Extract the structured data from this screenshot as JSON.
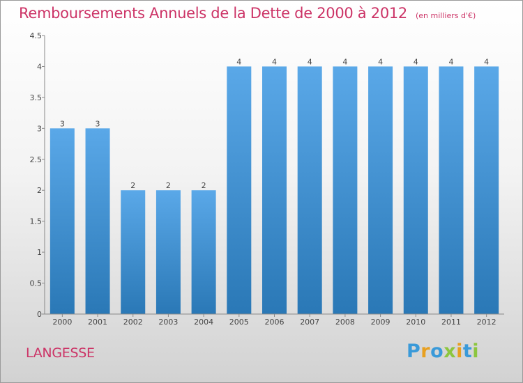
{
  "chart_data": {
    "type": "bar",
    "title": "Remboursements Annuels de la Dette de 2000 à 2012",
    "unit": "(en milliers d'€)",
    "categories": [
      "2000",
      "2001",
      "2002",
      "2003",
      "2004",
      "2005",
      "2006",
      "2007",
      "2008",
      "2009",
      "2010",
      "2011",
      "2012"
    ],
    "values": [
      3,
      3,
      2,
      2,
      2,
      4,
      4,
      4,
      4,
      4,
      4,
      4,
      4
    ],
    "data_labels": [
      "3",
      "3",
      "2",
      "2",
      "2",
      "4",
      "4",
      "4",
      "4",
      "4",
      "4",
      "4",
      "4"
    ],
    "ylim": [
      0,
      4.5
    ],
    "yticks": [
      "0",
      "0.5",
      "1",
      "1.5",
      "2",
      "2.5",
      "3",
      "3.5",
      "4",
      "4.5"
    ],
    "grid": false,
    "bar_color_top": "#5aa8e8",
    "bar_color_bottom": "#2a78b6"
  },
  "commune": "LANGESSE",
  "logo": {
    "name": "Proxiti",
    "letters": [
      {
        "ch": "P",
        "color": "#3a9ad9"
      },
      {
        "ch": "r",
        "color": "#e8a020"
      },
      {
        "ch": "o",
        "color": "#3a9ad9"
      },
      {
        "ch": "x",
        "color": "#8cc63e"
      },
      {
        "ch": "i",
        "color": "#e8a020"
      },
      {
        "ch": "t",
        "color": "#3a9ad9"
      },
      {
        "ch": "i",
        "color": "#8cc63e"
      }
    ]
  }
}
